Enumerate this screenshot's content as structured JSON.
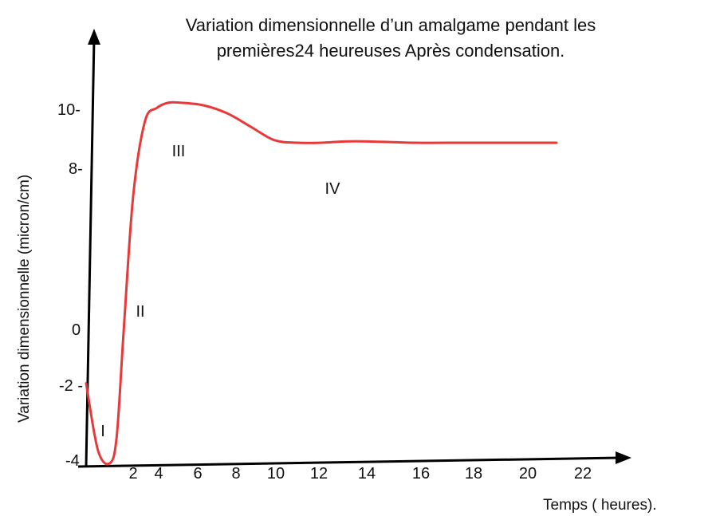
{
  "chart_data": {
    "type": "line",
    "title_line1": "Variation dimensionnelle d’un amalgame pendant les",
    "title_line2": "premières24 heureuses Après condensation.",
    "xlabel": "Temps ( heures).",
    "ylabel": "Variation dimensionnelle (micron/cm)",
    "x_ticks": [
      "2",
      "4",
      "6",
      "8",
      "10",
      "12",
      "14",
      "16",
      "18",
      "20",
      "22"
    ],
    "y_ticks": [
      "10-",
      "8-",
      "0",
      "-2 -",
      "-4"
    ],
    "region_labels": [
      "I",
      "II",
      "III",
      "IV"
    ],
    "line_color": "#e8393a",
    "grid": false,
    "series": [
      {
        "x": [
          0,
          0.5,
          1,
          1.3,
          1.6,
          2,
          2.5,
          3,
          3.5,
          4,
          5,
          6,
          7,
          8,
          9,
          10,
          11,
          12,
          14,
          16,
          18,
          20
        ],
        "y": [
          -1,
          -3.5,
          -4,
          -3,
          1,
          6,
          8.8,
          9.3,
          9.5,
          9.5,
          9.4,
          9.1,
          8.6,
          8.1,
          8.0,
          8.0,
          8.05,
          8.05,
          8.0,
          8.0,
          8.0,
          8.0
        ]
      }
    ]
  }
}
